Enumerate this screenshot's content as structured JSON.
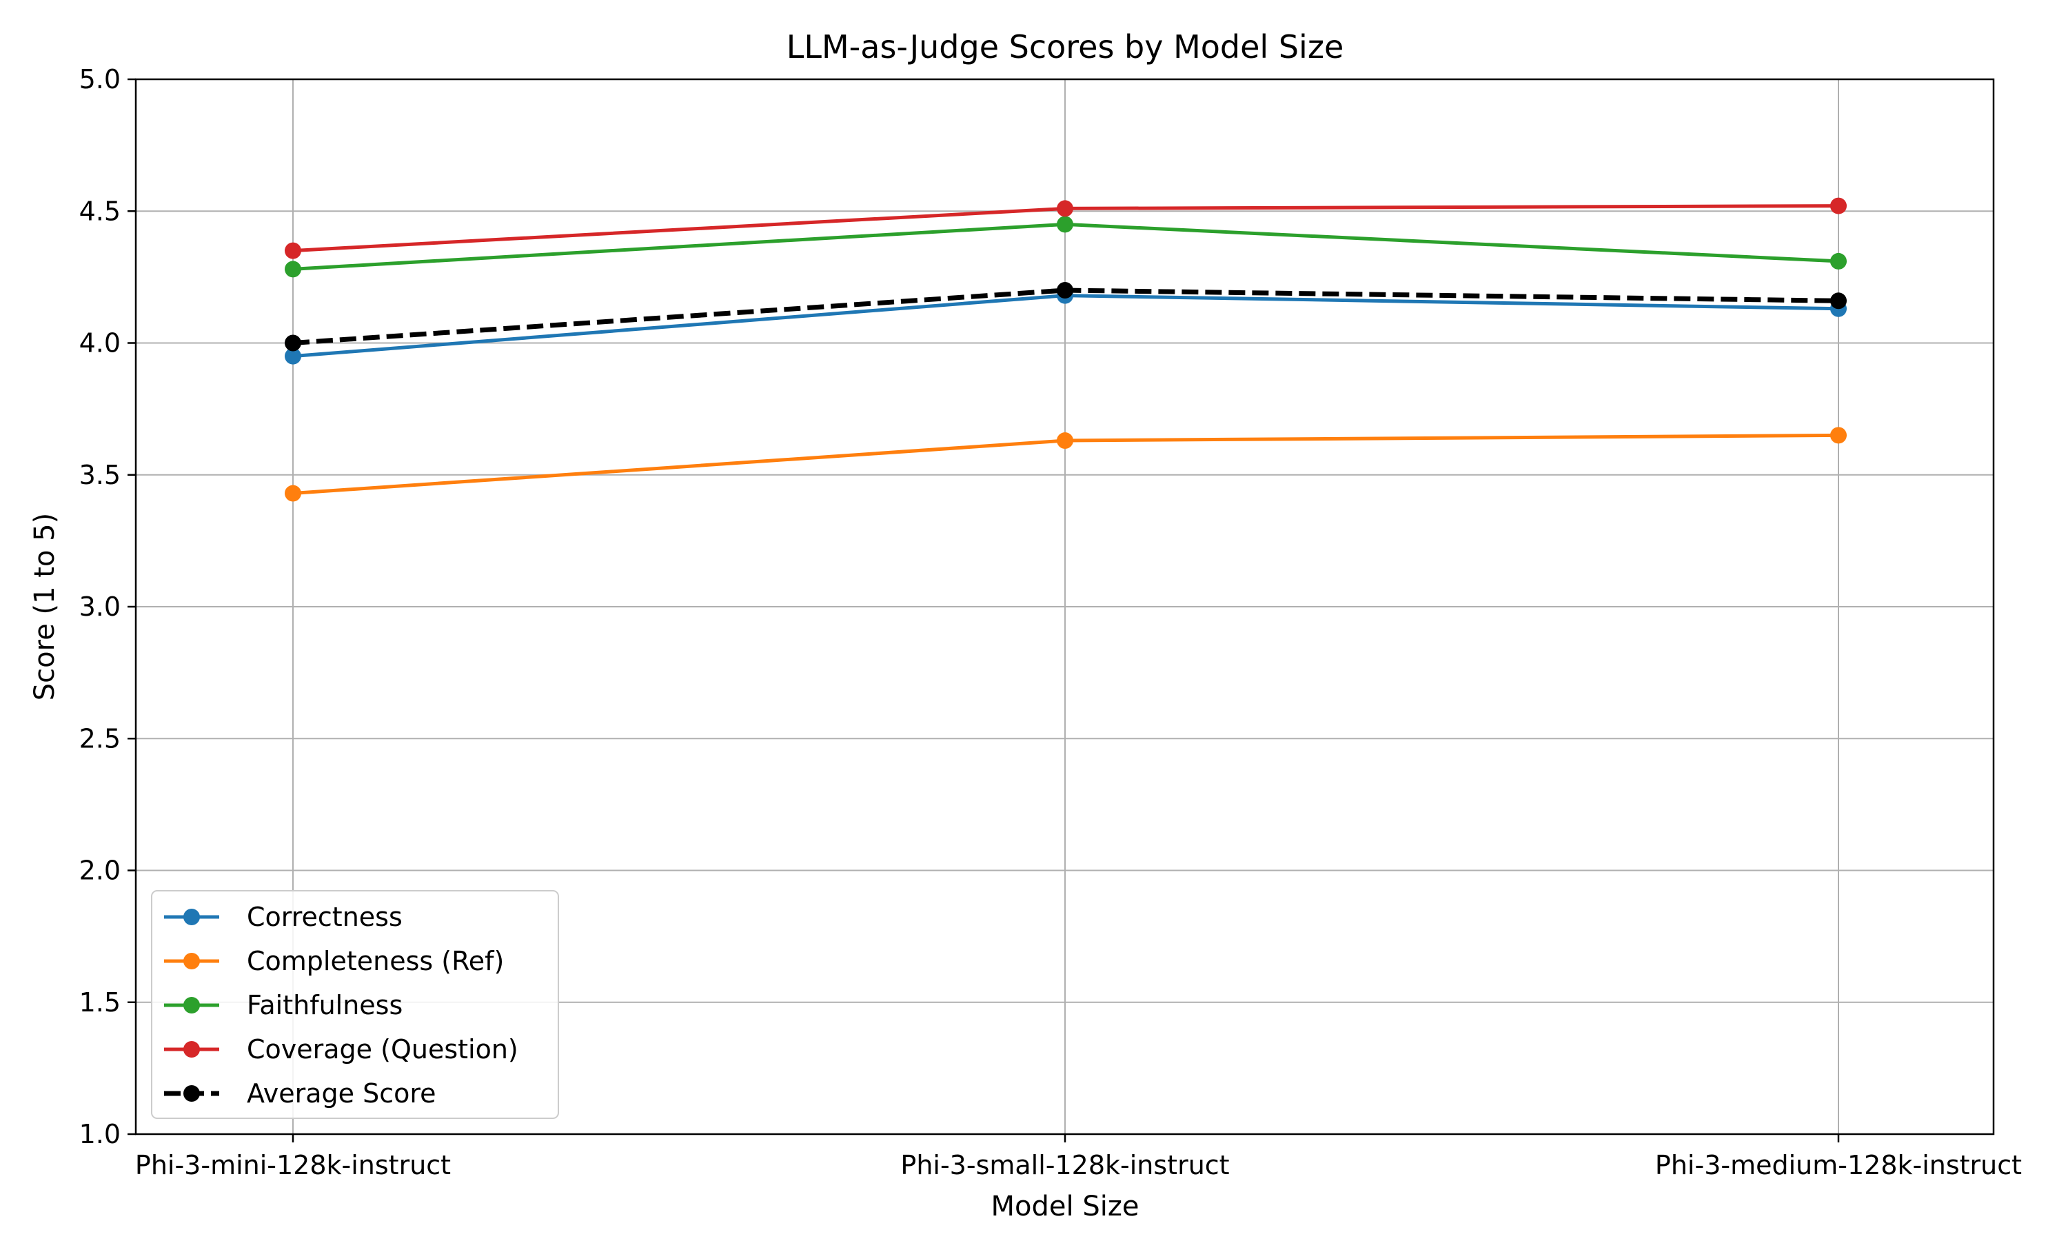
{
  "chart_data": {
    "type": "line",
    "title": "LLM-as-Judge Scores by Model Size",
    "xlabel": "Model Size",
    "ylabel": "Score (1 to 5)",
    "categories": [
      "Phi-3-mini-128k-instruct",
      "Phi-3-small-128k-instruct",
      "Phi-3-medium-128k-instruct"
    ],
    "ylim": [
      1.0,
      5.0
    ],
    "yticks": [
      "1.0",
      "1.5",
      "2.0",
      "2.5",
      "3.0",
      "3.5",
      "4.0",
      "4.5",
      "5.0"
    ],
    "grid": true,
    "legend_position": "lower-left",
    "series": [
      {
        "name": "Correctness",
        "values": [
          3.95,
          4.18,
          4.13
        ],
        "color": "#1f77b4",
        "style": "solid"
      },
      {
        "name": "Completeness (Ref)",
        "values": [
          3.43,
          3.63,
          3.65
        ],
        "color": "#ff7f0e",
        "style": "solid"
      },
      {
        "name": "Faithfulness",
        "values": [
          4.28,
          4.45,
          4.31
        ],
        "color": "#2ca02c",
        "style": "solid"
      },
      {
        "name": "Coverage (Question)",
        "values": [
          4.35,
          4.51,
          4.52
        ],
        "color": "#d62728",
        "style": "solid"
      },
      {
        "name": "Average Score",
        "values": [
          4.0,
          4.2,
          4.16
        ],
        "color": "#000000",
        "style": "dashed"
      }
    ]
  }
}
